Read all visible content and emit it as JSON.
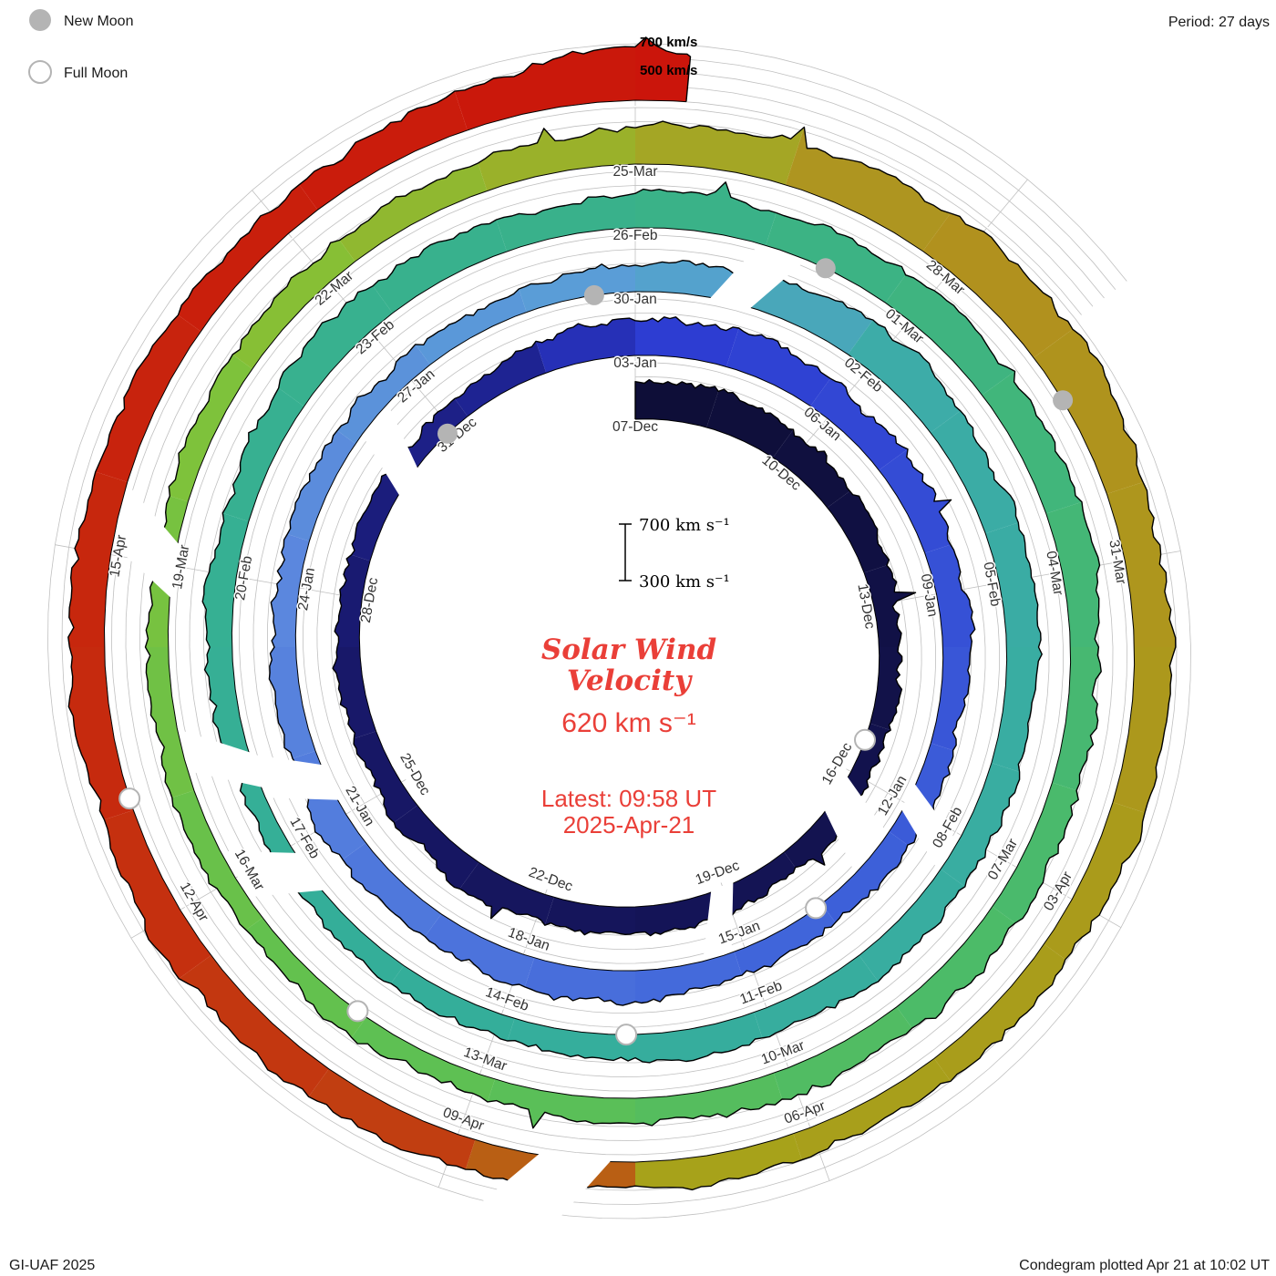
{
  "legend": {
    "new_moon": "New Moon",
    "full_moon": "Full Moon",
    "period": "Period: 27 days"
  },
  "annotations": {
    "top_700": "700 km/s",
    "top_500": "500 km/s"
  },
  "center": {
    "scale_top": "700 km s⁻¹",
    "scale_bottom": "300 km s⁻¹",
    "title_line1": "Solar Wind",
    "title_line2": "Velocity",
    "value": "620 km s⁻¹",
    "latest_line1": "Latest: 09:58 UT",
    "latest_line2": "2025-Apr-21"
  },
  "footer": {
    "left": "GI-UAF 2025",
    "right": "Condegram plotted Apr 21 at 10:02 UT"
  },
  "style": {
    "red": "#ea3f38",
    "grid": "#c0c0c0",
    "moon_gray": "#b4b4b4",
    "outline": "#000000",
    "label": "#333333"
  },
  "chart_data": {
    "type": "area",
    "layout": "polar_spiral_condegram",
    "title": "Solar Wind Velocity",
    "units": "km/s",
    "period_days": 27,
    "rotation": "clockwise",
    "start_date": "2024-12-07",
    "latest_date": "2025-04-21",
    "latest_time_ut": "09:58",
    "latest_kms": 620,
    "total_days": 135.4,
    "r_axis": {
      "min_kms": 300,
      "max_kms": 700,
      "gridlines_kms": [
        300,
        400,
        500,
        600,
        700
      ]
    },
    "tick_labels": [
      "07-Dec",
      "10-Dec",
      "13-Dec",
      "16-Dec",
      "19-Dec",
      "22-Dec",
      "25-Dec",
      "28-Dec",
      "31-Dec",
      "03-Jan",
      "06-Jan",
      "09-Jan",
      "12-Jan",
      "15-Jan",
      "18-Jan",
      "21-Jan",
      "24-Jan",
      "27-Jan",
      "30-Jan",
      "02-Feb",
      "05-Feb",
      "08-Feb",
      "11-Feb",
      "14-Feb",
      "17-Feb",
      "20-Feb",
      "23-Feb",
      "26-Feb",
      "01-Mar",
      "04-Mar",
      "07-Mar",
      "10-Mar",
      "13-Mar",
      "16-Mar",
      "19-Mar",
      "22-Mar",
      "25-Mar",
      "28-Mar",
      "31-Mar",
      "03-Apr",
      "06-Apr",
      "09-Apr",
      "12-Apr",
      "15-Apr"
    ],
    "samples_est": [
      {
        "day": 0,
        "date": "2024-12-07",
        "kms": 570
      },
      {
        "day": 3,
        "date": "2024-12-10",
        "kms": 555
      },
      {
        "day": 6,
        "date": "2024-12-13",
        "kms": 470
      },
      {
        "day": 9,
        "date": "2024-12-16",
        "kms": 430
      },
      {
        "day": 12,
        "date": "2024-12-19",
        "kms": 455
      },
      {
        "day": 15,
        "date": "2024-12-22",
        "kms": 505
      },
      {
        "day": 18,
        "date": "2024-12-25",
        "kms": 480
      },
      {
        "day": 21,
        "date": "2024-12-28",
        "kms": 460
      },
      {
        "day": 24,
        "date": "2024-12-31",
        "kms": 455
      },
      {
        "day": 27,
        "date": "2025-01-03",
        "kms": 575
      },
      {
        "day": 30,
        "date": "2025-01-06",
        "kms": 545
      },
      {
        "day": 33,
        "date": "2025-01-09",
        "kms": 490
      },
      {
        "day": 36,
        "date": "2025-01-12",
        "kms": 455
      },
      {
        "day": 39,
        "date": "2025-01-15",
        "kms": 480
      },
      {
        "day": 42,
        "date": "2025-01-18",
        "kms": 530
      },
      {
        "day": 45,
        "date": "2025-01-21",
        "kms": 505
      },
      {
        "day": 48,
        "date": "2025-01-24",
        "kms": 470
      },
      {
        "day": 51,
        "date": "2025-01-27",
        "kms": 440
      },
      {
        "day": 54,
        "date": "2025-01-30",
        "kms": 470
      },
      {
        "day": 57,
        "date": "2025-02-02",
        "kms": 590
      },
      {
        "day": 60,
        "date": "2025-02-05",
        "kms": 535
      },
      {
        "day": 63,
        "date": "2025-02-08",
        "kms": 490
      },
      {
        "day": 66,
        "date": "2025-02-11",
        "kms": 515
      },
      {
        "day": 69,
        "date": "2025-02-14",
        "kms": 470
      },
      {
        "day": 72,
        "date": "2025-02-17",
        "kms": 430
      },
      {
        "day": 75,
        "date": "2025-02-20",
        "kms": 485
      },
      {
        "day": 78,
        "date": "2025-02-23",
        "kms": 530
      },
      {
        "day": 81,
        "date": "2025-02-26",
        "kms": 550
      },
      {
        "day": 84,
        "date": "2025-03-01",
        "kms": 565
      },
      {
        "day": 87,
        "date": "2025-03-04",
        "kms": 540
      },
      {
        "day": 90,
        "date": "2025-03-07",
        "kms": 485
      },
      {
        "day": 93,
        "date": "2025-03-10",
        "kms": 505
      },
      {
        "day": 96,
        "date": "2025-03-13",
        "kms": 470
      },
      {
        "day": 99,
        "date": "2025-03-16",
        "kms": 450
      },
      {
        "day": 102,
        "date": "2025-03-19",
        "kms": 445
      },
      {
        "day": 105,
        "date": "2025-03-22",
        "kms": 480
      },
      {
        "day": 108,
        "date": "2025-03-25",
        "kms": 555
      },
      {
        "day": 111,
        "date": "2025-03-28",
        "kms": 660
      },
      {
        "day": 114,
        "date": "2025-03-31",
        "kms": 565
      },
      {
        "day": 117,
        "date": "2025-04-03",
        "kms": 515
      },
      {
        "day": 120,
        "date": "2025-04-06",
        "kms": 470
      },
      {
        "day": 123,
        "date": "2025-04-09",
        "kms": 510
      },
      {
        "day": 126,
        "date": "2025-04-12",
        "kms": 560
      },
      {
        "day": 129,
        "date": "2025-04-15",
        "kms": 540
      },
      {
        "day": 132,
        "date": "2025-04-18",
        "kms": 515
      },
      {
        "day": 134.2,
        "date": "2025-04-20",
        "kms": 585
      },
      {
        "day": 135.0,
        "date": "2025-04-21",
        "kms": 700
      },
      {
        "day": 135.4,
        "date": "2025-04-21",
        "kms": 620
      }
    ],
    "gaps": [
      {
        "start_day": 9.1,
        "end_day": 9.8,
        "date": "2024-12-16"
      },
      {
        "start_day": 11.8,
        "end_day": 12.2,
        "date": "2024-12-19"
      },
      {
        "start_day": 22.7,
        "end_day": 23.2,
        "date": "2024-12-30"
      },
      {
        "start_day": 35.7,
        "end_day": 36.1,
        "date": "2025-01-12"
      },
      {
        "start_day": 45.2,
        "end_day": 45.7,
        "date": "2025-01-21"
      },
      {
        "start_day": 54.9,
        "end_day": 55.4,
        "date": "2025-01-31"
      },
      {
        "start_day": 71.4,
        "end_day": 71.9,
        "date": "2025-02-17"
      },
      {
        "start_day": 72.7,
        "end_day": 73.1,
        "date": "2025-02-18"
      },
      {
        "start_day": 101.7,
        "end_day": 102.2,
        "date": "2025-03-19"
      },
      {
        "start_day": 121.7,
        "end_day": 122.3,
        "date": "2025-04-08"
      }
    ],
    "color_stops": [
      {
        "day": 0,
        "color": "#0e0e36"
      },
      {
        "day": 20,
        "color": "#18186a"
      },
      {
        "day": 25.5,
        "color": "#1f2496"
      },
      {
        "day": 27,
        "color": "#2c3ad2"
      },
      {
        "day": 38,
        "color": "#3f63da"
      },
      {
        "day": 48,
        "color": "#5b87de"
      },
      {
        "day": 54,
        "color": "#5aa0d6"
      },
      {
        "day": 57.5,
        "color": "#3caca6"
      },
      {
        "day": 70,
        "color": "#34ae9a"
      },
      {
        "day": 82,
        "color": "#3ab288"
      },
      {
        "day": 91,
        "color": "#4cbb68"
      },
      {
        "day": 98,
        "color": "#63c14e"
      },
      {
        "day": 104,
        "color": "#82c238"
      },
      {
        "day": 108,
        "color": "#9fae27"
      },
      {
        "day": 110.5,
        "color": "#b28f1e"
      },
      {
        "day": 118,
        "color": "#a99d1b"
      },
      {
        "day": 121.6,
        "color": "#a7a31a"
      },
      {
        "day": 122.4,
        "color": "#c04412"
      },
      {
        "day": 127,
        "color": "#c62c0e"
      },
      {
        "day": 135.4,
        "color": "#cb150b"
      }
    ],
    "new_moons": [
      {
        "date": "2024-12-30",
        "day": 23.9
      },
      {
        "date": "2025-01-29",
        "day": 53.5
      },
      {
        "date": "2025-02-28",
        "day": 83.0
      },
      {
        "date": "2025-03-29",
        "day": 112.5
      }
    ],
    "full_moons": [
      {
        "date": "2024-12-15",
        "day": 8.4
      },
      {
        "date": "2025-01-13",
        "day": 37.9
      },
      {
        "date": "2025-02-12",
        "day": 67.6
      },
      {
        "date": "2025-03-14",
        "day": 97.3
      },
      {
        "date": "2025-04-13",
        "day": 127.0
      }
    ]
  }
}
